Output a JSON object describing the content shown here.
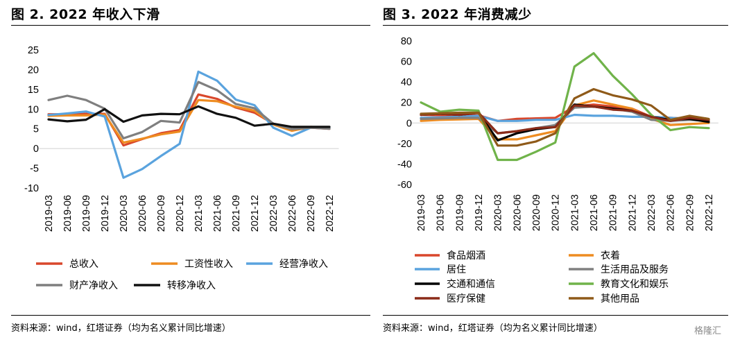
{
  "panel_left": {
    "title": "图 2. 2022 年收入下滑",
    "source": "资料来源：wind，红塔证券（均为名义累计同比增速）"
  },
  "panel_right": {
    "title": "图 3. 2022 年消费减少",
    "source": "资料来源：wind，红塔证券（均为名义累计同比增速）"
  },
  "watermark": "格隆汇",
  "chart_data": [
    {
      "type": "line",
      "title": "图 2. 2022 年收入下滑",
      "x": [
        "2019-03",
        "2019-06",
        "2019-09",
        "2019-12",
        "2020-03",
        "2020-06",
        "2020-09",
        "2020-12",
        "2021-03",
        "2021-06",
        "2021-09",
        "2021-12",
        "2022-03",
        "2022-06",
        "2022-09",
        "2022-12"
      ],
      "ylim": [
        -10,
        25
      ],
      "yticks": [
        -10,
        -5,
        0,
        5,
        10,
        15,
        20,
        25
      ],
      "grid": false,
      "legend_position": "bottom",
      "series": [
        {
          "name": "总收入",
          "color": "#d9472b",
          "values": [
            8.7,
            8.7,
            8.8,
            8.8,
            0.8,
            2.4,
            3.9,
            4.7,
            13.7,
            12.6,
            10.4,
            9.1,
            6.3,
            4.7,
            5.3,
            5.0
          ]
        },
        {
          "name": "工资性收入",
          "color": "#ee8c21",
          "values": [
            8.3,
            8.4,
            8.4,
            8.6,
            1.5,
            2.5,
            3.6,
            4.3,
            12.3,
            12.0,
            10.6,
            9.6,
            6.1,
            4.5,
            5.5,
            5.1
          ]
        },
        {
          "name": "经营净收入",
          "color": "#5aa3de",
          "values": [
            8.5,
            8.9,
            9.4,
            8.1,
            -7.4,
            -5.2,
            -1.9,
            1.2,
            19.5,
            17.2,
            12.4,
            11.0,
            5.3,
            3.2,
            5.3,
            5.3
          ]
        },
        {
          "name": "财产净收入",
          "color": "#7f7f7f",
          "values": [
            12.3,
            13.4,
            12.3,
            10.1,
            2.6,
            4.2,
            7.0,
            6.6,
            16.9,
            14.8,
            11.3,
            10.2,
            6.3,
            4.9,
            5.3,
            5.0
          ]
        },
        {
          "name": "转移净收入",
          "color": "#111111",
          "values": [
            7.4,
            6.9,
            7.3,
            10.0,
            6.8,
            8.4,
            8.8,
            8.7,
            10.7,
            8.8,
            7.8,
            5.8,
            6.3,
            5.5,
            5.5,
            5.5
          ]
        }
      ]
    },
    {
      "type": "line",
      "title": "图 3. 2022 年消费减少",
      "x": [
        "2019-03",
        "2019-06",
        "2019-09",
        "2019-12",
        "2020-03",
        "2020-06",
        "2020-09",
        "2020-12",
        "2021-03",
        "2021-06",
        "2021-09",
        "2021-12",
        "2022-03",
        "2022-06",
        "2022-09",
        "2022-12"
      ],
      "ylim": [
        -60,
        80
      ],
      "yticks": [
        -60,
        -40,
        -20,
        0,
        20,
        40,
        60,
        80
      ],
      "grid": false,
      "legend_position": "bottom",
      "series": [
        {
          "name": "食品烟酒",
          "color": "#d9472b",
          "values": [
            8,
            7.5,
            7,
            7.5,
            2,
            4,
            4.5,
            5,
            16,
            18,
            16,
            14,
            6,
            5,
            4,
            3
          ]
        },
        {
          "name": "衣着",
          "color": "#ee8c21",
          "values": [
            2,
            3,
            3.5,
            4,
            -16,
            -16,
            -12,
            -8,
            17,
            22,
            18,
            14,
            4,
            -2,
            -1,
            0
          ]
        },
        {
          "name": "居住",
          "color": "#5aa3de",
          "values": [
            5,
            5.5,
            6,
            7,
            2,
            2,
            3,
            3,
            8,
            7,
            7,
            6,
            6,
            5,
            4,
            3
          ]
        },
        {
          "name": "生活用品及服务",
          "color": "#808080",
          "values": [
            4,
            4.5,
            5,
            5,
            -10,
            -8,
            -5,
            -2,
            15,
            16,
            14,
            11,
            3,
            2,
            3,
            2
          ]
        },
        {
          "name": "交通和通信",
          "color": "#000000",
          "values": [
            8,
            9,
            8,
            10,
            -17,
            -10,
            -6,
            -4,
            18,
            16,
            14,
            12,
            6,
            3,
            4,
            1
          ]
        },
        {
          "name": "教育文化和娱乐",
          "color": "#70b34a",
          "values": [
            20,
            11,
            13,
            12,
            -36,
            -36,
            -28,
            -19,
            55,
            68,
            46,
            28,
            8,
            -7,
            -4,
            -5
          ]
        },
        {
          "name": "医疗保健",
          "color": "#8b2b18",
          "values": [
            8,
            9,
            8,
            10,
            -10,
            -8,
            -5,
            -4,
            17,
            16,
            13,
            12,
            6,
            2,
            5,
            3
          ]
        },
        {
          "name": "其他用品",
          "color": "#8f5a19",
          "values": [
            9,
            9.5,
            10,
            10,
            -22,
            -22,
            -18,
            -10,
            24,
            33,
            27,
            23,
            17,
            3,
            7,
            4
          ]
        }
      ]
    }
  ]
}
